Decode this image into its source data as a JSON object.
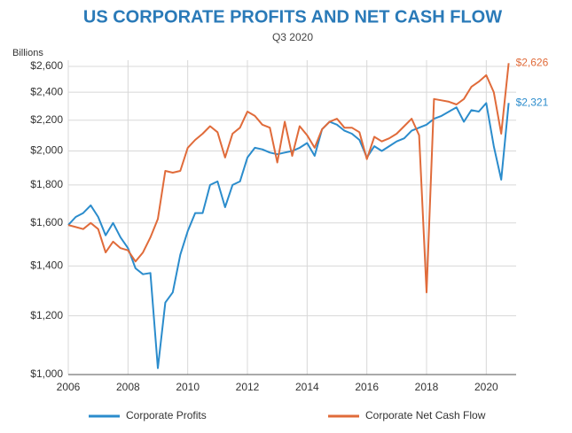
{
  "chart_data": {
    "type": "line",
    "title": "US CORPORATE PROFITS AND NET CASH FLOW",
    "subtitle": "Q3 2020",
    "y_label": "Billions",
    "log_scale": true,
    "grid": true,
    "legend": "bottom",
    "x": [
      2006,
      2006.25,
      2006.5,
      2006.75,
      2007,
      2007.25,
      2007.5,
      2007.75,
      2008,
      2008.25,
      2008.5,
      2008.75,
      2009,
      2009.25,
      2009.5,
      2009.75,
      2010,
      2010.25,
      2010.5,
      2010.75,
      2011,
      2011.25,
      2011.5,
      2011.75,
      2012,
      2012.25,
      2012.5,
      2012.75,
      2013,
      2013.25,
      2013.5,
      2013.75,
      2014,
      2014.25,
      2014.5,
      2014.75,
      2015,
      2015.25,
      2015.5,
      2015.75,
      2016,
      2016.25,
      2016.5,
      2016.75,
      2017,
      2017.25,
      2017.5,
      2017.75,
      2018,
      2018.25,
      2018.5,
      2018.75,
      2019,
      2019.25,
      2019.5,
      2019.75,
      2020,
      2020.25,
      2020.5,
      2020.75
    ],
    "xlim": [
      2006,
      2021
    ],
    "xticks": [
      2006,
      2008,
      2010,
      2012,
      2014,
      2016,
      2018,
      2020
    ],
    "ylim": [
      1000,
      2650
    ],
    "yticks": [
      {
        "value": 1000,
        "label": "$1,000"
      },
      {
        "value": 1200,
        "label": "$1,200"
      },
      {
        "value": 1400,
        "label": "$1,400"
      },
      {
        "value": 1600,
        "label": "$1,600"
      },
      {
        "value": 1800,
        "label": "$1,800"
      },
      {
        "value": 2000,
        "label": "$2,000"
      },
      {
        "value": 2200,
        "label": "$2,200"
      },
      {
        "value": 2400,
        "label": "$2,400"
      },
      {
        "value": 2600,
        "label": "$2,600"
      }
    ],
    "series": [
      {
        "name": "Corporate Profits",
        "color": "#2b8ccc",
        "values": [
          1590,
          1630,
          1650,
          1690,
          1630,
          1540,
          1600,
          1530,
          1480,
          1390,
          1365,
          1370,
          1020,
          1250,
          1290,
          1450,
          1560,
          1650,
          1650,
          1800,
          1820,
          1680,
          1800,
          1820,
          1960,
          2020,
          2010,
          1990,
          1980,
          1990,
          2000,
          2020,
          2050,
          1970,
          2140,
          2190,
          2170,
          2130,
          2110,
          2070,
          1960,
          2030,
          2000,
          2030,
          2060,
          2080,
          2130,
          2150,
          2170,
          2210,
          2230,
          2260,
          2290,
          2190,
          2270,
          2260,
          2320,
          2030,
          1830,
          2321
        ],
        "value_labels": [
          null,
          null,
          null,
          null,
          null,
          null,
          null,
          null,
          null,
          null,
          null,
          null,
          null,
          null,
          null,
          null,
          null,
          null,
          null,
          null,
          null,
          null,
          null,
          null,
          null,
          null,
          null,
          null,
          null,
          null,
          null,
          null,
          null,
          null,
          null,
          null,
          null,
          null,
          null,
          null,
          null,
          null,
          null,
          null,
          null,
          null,
          null,
          null,
          null,
          null,
          null,
          null,
          null,
          null,
          null,
          null,
          null,
          null,
          null,
          "$2,321"
        ]
      },
      {
        "name": "Corporate Net Cash Flow",
        "color": "#e06b3a",
        "values": [
          1590,
          1580,
          1570,
          1600,
          1570,
          1460,
          1510,
          1480,
          1470,
          1420,
          1460,
          1530,
          1620,
          1880,
          1870,
          1880,
          2020,
          2070,
          2110,
          2160,
          2120,
          1960,
          2110,
          2150,
          2260,
          2230,
          2170,
          2150,
          1930,
          2190,
          1970,
          2160,
          2100,
          2020,
          2140,
          2190,
          2210,
          2150,
          2150,
          2120,
          1950,
          2090,
          2060,
          2080,
          2110,
          2160,
          2210,
          2100,
          1290,
          2350,
          2340,
          2330,
          2310,
          2350,
          2440,
          2480,
          2530,
          2400,
          2110,
          2626
        ],
        "value_labels": [
          null,
          null,
          null,
          null,
          null,
          null,
          null,
          null,
          null,
          null,
          null,
          null,
          null,
          null,
          null,
          null,
          null,
          null,
          null,
          null,
          null,
          null,
          null,
          null,
          null,
          null,
          null,
          null,
          null,
          null,
          null,
          null,
          null,
          null,
          null,
          null,
          null,
          null,
          null,
          null,
          null,
          null,
          null,
          null,
          null,
          null,
          null,
          null,
          null,
          null,
          null,
          null,
          null,
          null,
          null,
          null,
          null,
          null,
          null,
          "$2,626"
        ]
      }
    ]
  }
}
